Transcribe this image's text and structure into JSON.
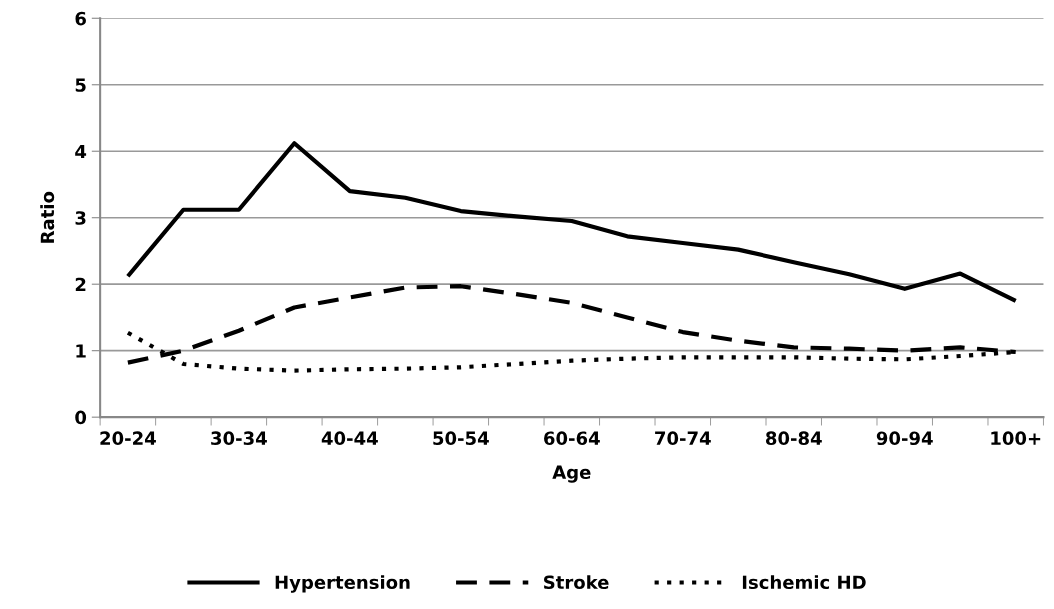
{
  "chart_data": {
    "type": "line",
    "xlabel": "Age",
    "ylabel": "Ratio",
    "categories": [
      "20-24",
      null,
      "30-34",
      null,
      "40-44",
      null,
      "50-54",
      null,
      "60-64",
      null,
      "70-74",
      null,
      "80-84",
      null,
      "90-94",
      null,
      "100+"
    ],
    "series": [
      {
        "name": "Hypertension",
        "color": "#000000",
        "line_style": "solid",
        "values": [
          2.12,
          3.12,
          3.12,
          4.12,
          3.4,
          3.3,
          3.1,
          3.02,
          2.95,
          2.72,
          2.62,
          2.52,
          2.33,
          2.15,
          1.93,
          2.16,
          1.75
        ]
      },
      {
        "name": "Stroke",
        "color": "#000000",
        "line_style": "dashed",
        "values": [
          0.82,
          1.0,
          1.3,
          1.65,
          1.8,
          1.95,
          1.97,
          1.85,
          1.72,
          1.5,
          1.28,
          1.15,
          1.05,
          1.03,
          1.0,
          1.05,
          0.98
        ]
      },
      {
        "name": "Ischemic HD",
        "color": "#000000",
        "line_style": "dotted",
        "values": [
          1.27,
          0.8,
          0.73,
          0.7,
          0.72,
          0.73,
          0.75,
          0.8,
          0.85,
          0.88,
          0.9,
          0.9,
          0.9,
          0.88,
          0.87,
          0.92,
          0.98
        ]
      }
    ],
    "ylim": [
      0,
      6
    ],
    "yticks": [
      0,
      1,
      2,
      3,
      4,
      5,
      6
    ],
    "grid": "y",
    "legend": "bottom",
    "marker": "none"
  }
}
